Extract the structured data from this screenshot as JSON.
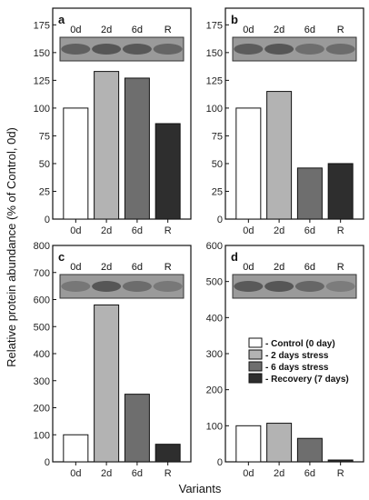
{
  "figure": {
    "ylabel": "Relative protein abundance (% of Control, 0d)",
    "xlabel": "Variants"
  },
  "colors": {
    "0d": "#ffffff",
    "2d": "#b3b3b3",
    "6d": "#6e6e6e",
    "R": "#2e2e2e",
    "bar_edge": "#111111",
    "blot_bg": "#9a9a9a",
    "blot_band": "#4a4a4a"
  },
  "legend": [
    {
      "key": "0d",
      "label": "- Control (0 day)"
    },
    {
      "key": "2d",
      "label": "- 2 days stress"
    },
    {
      "key": "6d",
      "label": "- 6 days stress"
    },
    {
      "key": "R",
      "label": "- Recovery (7 days)"
    }
  ],
  "chart_data": [
    {
      "type": "bar",
      "panel": "a",
      "categories": [
        "0d",
        "2d",
        "6d",
        "R"
      ],
      "values": [
        100,
        133,
        127,
        86
      ],
      "ylim": [
        0,
        190
      ],
      "yticks": [
        0,
        25,
        50,
        75,
        100,
        125,
        150,
        175
      ],
      "lanes": [
        "0d",
        "2d",
        "6d",
        "R"
      ]
    },
    {
      "type": "bar",
      "panel": "b",
      "categories": [
        "0d",
        "2d",
        "6d",
        "R"
      ],
      "values": [
        100,
        115,
        46,
        50
      ],
      "ylim": [
        0,
        190
      ],
      "yticks": [
        0,
        25,
        50,
        75,
        100,
        125,
        150,
        175
      ],
      "lanes": [
        "0d",
        "2d",
        "6d",
        "R"
      ]
    },
    {
      "type": "bar",
      "panel": "c",
      "categories": [
        "0d",
        "2d",
        "6d",
        "R"
      ],
      "values": [
        100,
        580,
        250,
        65
      ],
      "ylim": [
        0,
        800
      ],
      "yticks": [
        0,
        100,
        200,
        300,
        400,
        500,
        600,
        700,
        800
      ],
      "lanes": [
        "0d",
        "2d",
        "6d",
        "R"
      ]
    },
    {
      "type": "bar",
      "panel": "d",
      "categories": [
        "0d",
        "2d",
        "6d",
        "R"
      ],
      "values": [
        100,
        107,
        65,
        5
      ],
      "ylim": [
        0,
        600
      ],
      "yticks": [
        0,
        100,
        200,
        300,
        400,
        500,
        600
      ],
      "lanes": [
        "0d",
        "2d",
        "6d",
        "R"
      ]
    }
  ]
}
